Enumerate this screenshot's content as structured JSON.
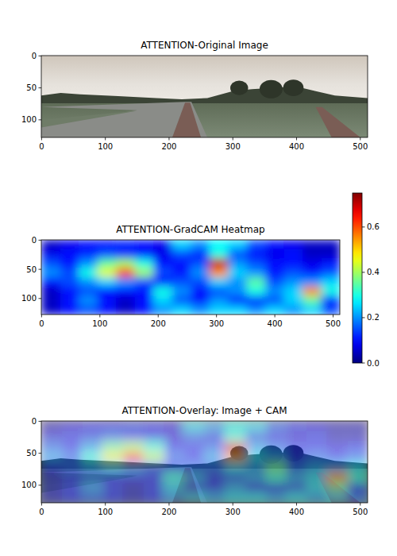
{
  "chart_data": [
    {
      "type": "image",
      "title": "ATTENTION-Original Image",
      "xlim": [
        -0.5,
        511.5
      ],
      "ylim": [
        127.5,
        -0.5
      ],
      "xticks": [
        0,
        100,
        200,
        300,
        400,
        500
      ],
      "yticks": [
        0,
        50,
        100
      ]
    },
    {
      "type": "heatmap",
      "title": "ATTENTION-GradCAM Heatmap",
      "xlim": [
        -0.5,
        511.5
      ],
      "ylim": [
        127.5,
        -0.5
      ],
      "xticks": [
        0,
        100,
        200,
        300,
        400,
        500
      ],
      "yticks": [
        0,
        50,
        100
      ],
      "cells": [
        [
          0.05,
          0.08,
          0.1,
          0.1,
          0.12,
          0.1,
          0.08,
          0.25,
          0.2,
          0.28,
          0.25,
          0.15,
          0.1,
          0.08,
          0.05,
          0.05
        ],
        [
          0.08,
          0.1,
          0.12,
          0.15,
          0.12,
          0.1,
          0.08,
          0.15,
          0.12,
          0.3,
          0.15,
          0.1,
          0.08,
          0.1,
          0.05,
          0.05
        ],
        [
          0.15,
          0.1,
          0.2,
          0.35,
          0.4,
          0.3,
          0.1,
          0.1,
          0.15,
          0.7,
          0.2,
          0.15,
          0.1,
          0.1,
          0.08,
          0.1
        ],
        [
          0.2,
          0.15,
          0.3,
          0.45,
          0.62,
          0.4,
          0.15,
          0.1,
          0.2,
          0.55,
          0.25,
          0.2,
          0.1,
          0.15,
          0.1,
          0.15
        ],
        [
          0.1,
          0.15,
          0.2,
          0.25,
          0.2,
          0.15,
          0.1,
          0.15,
          0.15,
          0.25,
          0.2,
          0.35,
          0.15,
          0.2,
          0.2,
          0.25
        ],
        [
          0.05,
          0.1,
          0.15,
          0.1,
          0.1,
          0.1,
          0.3,
          0.2,
          0.1,
          0.15,
          0.2,
          0.3,
          0.2,
          0.25,
          0.55,
          0.3
        ],
        [
          0.05,
          0.1,
          0.2,
          0.1,
          0.05,
          0.1,
          0.25,
          0.15,
          0.1,
          0.2,
          0.1,
          0.1,
          0.15,
          0.25,
          0.35,
          0.1
        ],
        [
          0.05,
          0.1,
          0.15,
          0.1,
          0.05,
          0.1,
          0.2,
          0.25,
          0.2,
          0.25,
          0.25,
          0.2,
          0.25,
          0.2,
          0.25,
          0.15
        ]
      ],
      "colorbar_range": [
        0,
        0.75
      ],
      "colorbar_ticks": [
        {
          "value": 0,
          "label": "0.0"
        },
        {
          "value": 0.2,
          "label": "0.2"
        },
        {
          "value": 0.4,
          "label": "0.4"
        },
        {
          "value": 0.6,
          "label": "0.6"
        }
      ]
    },
    {
      "type": "overlay",
      "title": "ATTENTION-Overlay: Image + CAM",
      "xlim": [
        -0.5,
        511.5
      ],
      "ylim": [
        127.5,
        -0.5
      ],
      "xticks": [
        0,
        100,
        200,
        300,
        400,
        500
      ],
      "yticks": [
        0,
        50,
        100
      ]
    }
  ]
}
